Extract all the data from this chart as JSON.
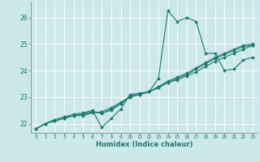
{
  "xlabel": "Humidex (Indice chaleur)",
  "bg_color": "#cce8eb",
  "grid_color": "#ffffff",
  "line_color": "#1a7a6e",
  "xlim": [
    -0.5,
    23.5
  ],
  "ylim": [
    21.65,
    26.6
  ],
  "yticks": [
    22,
    23,
    24,
    25,
    26
  ],
  "xticks": [
    0,
    1,
    2,
    3,
    4,
    5,
    6,
    7,
    8,
    9,
    10,
    11,
    12,
    13,
    14,
    15,
    16,
    17,
    18,
    19,
    20,
    21,
    22,
    23
  ],
  "series": [
    {
      "x": [
        0,
        1,
        2,
        3,
        4,
        5,
        6,
        7,
        8,
        9,
        10,
        11,
        12,
        13,
        14,
        15,
        16,
        17,
        18,
        19,
        20,
        21,
        22,
        23
      ],
      "y": [
        21.8,
        22.0,
        22.1,
        22.2,
        22.3,
        22.3,
        22.4,
        22.45,
        22.6,
        22.8,
        23.0,
        23.1,
        23.2,
        23.35,
        23.55,
        23.7,
        23.85,
        24.05,
        24.25,
        24.45,
        24.6,
        24.75,
        24.9,
        24.95
      ]
    },
    {
      "x": [
        0,
        1,
        2,
        3,
        4,
        5,
        6,
        7,
        8,
        9,
        10,
        11,
        12,
        13,
        14,
        15,
        16,
        17,
        18,
        19,
        20,
        21,
        22,
        23
      ],
      "y": [
        21.8,
        22.0,
        22.15,
        22.25,
        22.35,
        22.4,
        22.5,
        21.85,
        22.2,
        22.55,
        23.1,
        23.15,
        23.2,
        23.7,
        26.25,
        25.85,
        26.0,
        25.85,
        24.65,
        24.65,
        24.0,
        24.05,
        24.4,
        24.5
      ]
    },
    {
      "x": [
        0,
        1,
        2,
        3,
        4,
        5,
        6,
        7,
        8,
        9,
        10,
        11,
        12,
        13,
        14,
        15,
        16,
        17,
        18,
        19,
        20,
        21,
        22,
        23
      ],
      "y": [
        21.8,
        22.0,
        22.1,
        22.2,
        22.3,
        22.35,
        22.45,
        22.4,
        22.5,
        22.75,
        23.05,
        23.1,
        23.2,
        23.4,
        23.6,
        23.75,
        23.9,
        24.1,
        24.3,
        24.5,
        24.65,
        24.8,
        24.95,
        25.0
      ]
    },
    {
      "x": [
        3,
        4,
        5,
        6,
        7,
        8,
        9,
        10,
        11,
        12,
        13,
        14,
        15,
        16,
        17,
        18,
        19,
        20,
        21,
        22,
        23
      ],
      "y": [
        22.2,
        22.3,
        22.35,
        22.45,
        22.38,
        22.55,
        22.75,
        23.0,
        23.1,
        23.2,
        23.35,
        23.55,
        23.65,
        23.8,
        23.95,
        24.15,
        24.35,
        24.5,
        24.65,
        24.8,
        24.95
      ]
    }
  ]
}
